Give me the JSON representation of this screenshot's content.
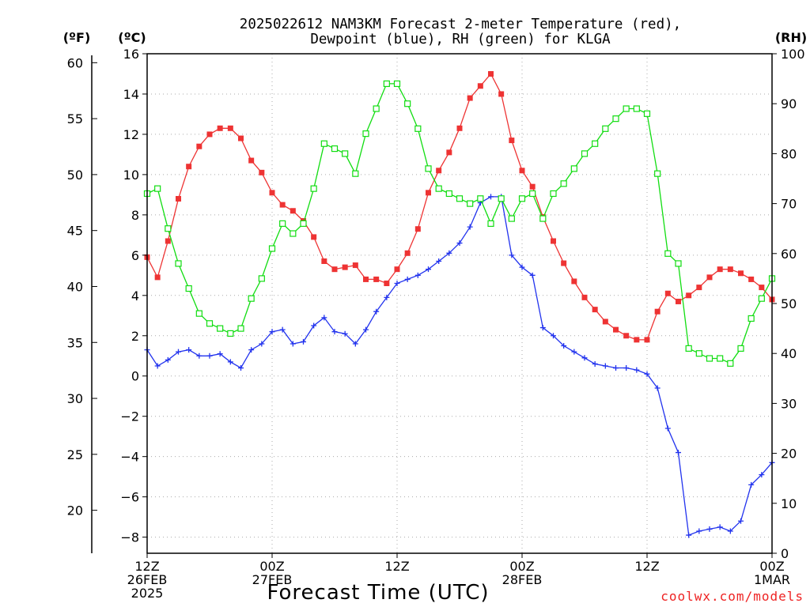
{
  "chart_data": {
    "type": "line",
    "title_line1": "2025022612 NAM3KM Forecast 2-meter Temperature (red),",
    "title_line2": "Dewpoint (blue), RH (green) for KLGA",
    "xlabel": "Forecast Time (UTC)",
    "unit_f": "(ºF)",
    "unit_c": "(ºC)",
    "unit_rh": "(RH)",
    "credit": "coolwx.com/models",
    "x_ticks": [
      {
        "h": 0,
        "lines": [
          "12Z",
          "26FEB",
          "2025"
        ]
      },
      {
        "h": 12,
        "lines": [
          "00Z",
          "27FEB"
        ]
      },
      {
        "h": 24,
        "lines": [
          "12Z"
        ]
      },
      {
        "h": 36,
        "lines": [
          "00Z",
          "28FEB"
        ]
      },
      {
        "h": 48,
        "lines": [
          "12Z"
        ]
      },
      {
        "h": 60,
        "lines": [
          "00Z",
          "1MAR"
        ]
      }
    ],
    "xlim": [
      0,
      60
    ],
    "celsius_ticks": [
      16,
      14,
      12,
      10,
      8,
      6,
      4,
      2,
      0,
      -2,
      -4,
      -6,
      -8
    ],
    "celsius_lim": [
      -8.8,
      16
    ],
    "fahrenheit_ticks": [
      60,
      55,
      50,
      45,
      40,
      35,
      30,
      25,
      20
    ],
    "rh_ticks": [
      100,
      90,
      80,
      70,
      60,
      50,
      40,
      30,
      20,
      10,
      0
    ],
    "rh_lim": [
      0,
      100
    ],
    "grid": true,
    "series": [
      {
        "name": "2-meter Temperature",
        "unit": "degC",
        "color": "#ee3333",
        "marker": "filled-square",
        "x": [
          0,
          1,
          2,
          3,
          4,
          5,
          6,
          7,
          8,
          9,
          10,
          11,
          12,
          13,
          14,
          15,
          16,
          17,
          18,
          19,
          20,
          21,
          22,
          23,
          24,
          25,
          26,
          27,
          28,
          29,
          30,
          31,
          32,
          33,
          34,
          35,
          36,
          37,
          38,
          39,
          40,
          41,
          42,
          43,
          44,
          45,
          46,
          47,
          48,
          49,
          50,
          51,
          52,
          53,
          54,
          55,
          56,
          57,
          58,
          59,
          60
        ],
        "y": [
          5.9,
          4.9,
          6.7,
          8.8,
          10.4,
          11.4,
          12.0,
          12.3,
          12.3,
          11.8,
          10.7,
          10.1,
          9.1,
          8.5,
          8.2,
          7.7,
          6.9,
          5.7,
          5.3,
          5.4,
          5.5,
          4.8,
          4.8,
          4.6,
          5.3,
          6.1,
          7.3,
          9.1,
          10.2,
          11.1,
          12.3,
          13.8,
          14.4,
          15.0,
          14.0,
          11.7,
          10.2,
          9.4,
          7.9,
          6.7,
          5.6,
          4.7,
          3.9,
          3.3,
          2.7,
          2.3,
          2.0,
          1.8,
          1.8,
          3.2,
          4.1,
          3.7,
          4.0,
          4.4,
          4.9,
          5.3,
          5.3,
          5.1,
          4.8,
          4.4,
          3.8
        ]
      },
      {
        "name": "Dewpoint",
        "unit": "degC",
        "color": "#2233ee",
        "marker": "plus",
        "x": [
          0,
          1,
          2,
          3,
          4,
          5,
          6,
          7,
          8,
          9,
          10,
          11,
          12,
          13,
          14,
          15,
          16,
          17,
          18,
          19,
          20,
          21,
          22,
          23,
          24,
          25,
          26,
          27,
          28,
          29,
          30,
          31,
          32,
          33,
          34,
          35,
          36,
          37,
          38,
          39,
          40,
          41,
          42,
          43,
          44,
          45,
          46,
          47,
          48,
          49,
          50,
          51,
          52,
          53,
          54,
          55,
          56,
          57,
          58,
          59,
          60
        ],
        "y": [
          1.3,
          0.5,
          0.8,
          1.2,
          1.3,
          1.0,
          1.0,
          1.1,
          0.7,
          0.4,
          1.3,
          1.6,
          2.2,
          2.3,
          1.6,
          1.7,
          2.5,
          2.9,
          2.2,
          2.1,
          1.6,
          2.3,
          3.2,
          3.9,
          4.6,
          4.8,
          5.0,
          5.3,
          5.7,
          6.1,
          6.6,
          7.4,
          8.6,
          8.9,
          8.9,
          6.0,
          5.4,
          5.0,
          2.4,
          2.0,
          1.5,
          1.2,
          0.9,
          0.6,
          0.5,
          0.4,
          0.4,
          0.3,
          0.1,
          -0.6,
          -2.6,
          -3.8,
          -7.9,
          -7.7,
          -7.6,
          -7.5,
          -7.7,
          -7.2,
          -5.4,
          -4.9,
          -4.3
        ]
      },
      {
        "name": "RH",
        "unit": "percent",
        "color": "#11dd11",
        "marker": "open-square",
        "x": [
          0,
          1,
          2,
          3,
          4,
          5,
          6,
          7,
          8,
          9,
          10,
          11,
          12,
          13,
          14,
          15,
          16,
          17,
          18,
          19,
          20,
          21,
          22,
          23,
          24,
          25,
          26,
          27,
          28,
          29,
          30,
          31,
          32,
          33,
          34,
          35,
          36,
          37,
          38,
          39,
          40,
          41,
          42,
          43,
          44,
          45,
          46,
          47,
          48,
          49,
          50,
          51,
          52,
          53,
          54,
          55,
          56,
          57,
          58,
          59,
          60
        ],
        "y": [
          72,
          73,
          65,
          58,
          53,
          48,
          46,
          45,
          44,
          45,
          51,
          55,
          61,
          66,
          64,
          66,
          73,
          82,
          81,
          80,
          76,
          84,
          89,
          94,
          94,
          90,
          85,
          77,
          73,
          72,
          71,
          70,
          71,
          66,
          71,
          67,
          71,
          72,
          67,
          72,
          74,
          77,
          80,
          82,
          85,
          87,
          89,
          89,
          88,
          76,
          60,
          58,
          41,
          40,
          39,
          39,
          38,
          41,
          47,
          51,
          55
        ]
      }
    ]
  }
}
